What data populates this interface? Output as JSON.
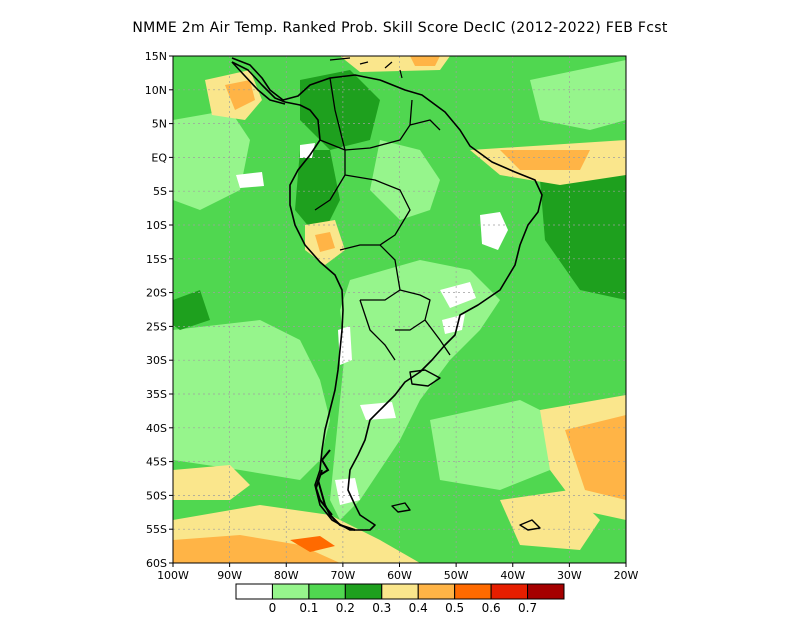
{
  "title": "NMME  2m Air Temp. Ranked Prob. Skill Score DecIC (2012-2022) FEB Fcst",
  "map": {
    "lon_range": [
      -100,
      -20
    ],
    "lat_range": [
      -60,
      15
    ],
    "y_ticks": [
      "15N",
      "10N",
      "5N",
      "EQ",
      "5S",
      "10S",
      "15S",
      "20S",
      "25S",
      "30S",
      "35S",
      "40S",
      "45S",
      "50S",
      "55S",
      "60S"
    ],
    "y_tick_values": [
      15,
      10,
      5,
      0,
      -5,
      -10,
      -15,
      -20,
      -25,
      -30,
      -35,
      -40,
      -45,
      -50,
      -55,
      -60
    ],
    "x_ticks": [
      "100W",
      "90W",
      "80W",
      "70W",
      "60W",
      "50W",
      "40W",
      "30W",
      "20W"
    ],
    "x_tick_values": [
      -100,
      -90,
      -80,
      -70,
      -60,
      -50,
      -40,
      -30,
      -20
    ],
    "grid": true
  },
  "colorbar": {
    "labels": [
      "0",
      "0.1",
      "0.2",
      "0.3",
      "0.4",
      "0.5",
      "0.6",
      "0.7"
    ],
    "colors": [
      "#ffffff",
      "#96f58c",
      "#50d750",
      "#1ea01e",
      "#fae68c",
      "#ffb446",
      "#ff6a00",
      "#e61e00",
      "#a50000"
    ]
  },
  "palette": {
    "bg_green": "#50d750",
    "light_green": "#96f58c",
    "dark_green": "#1ea01e",
    "yellow": "#fae68c",
    "orange": "#ffb446",
    "dark_orange": "#ff6a00",
    "white": "#ffffff",
    "coast": "#000000"
  }
}
